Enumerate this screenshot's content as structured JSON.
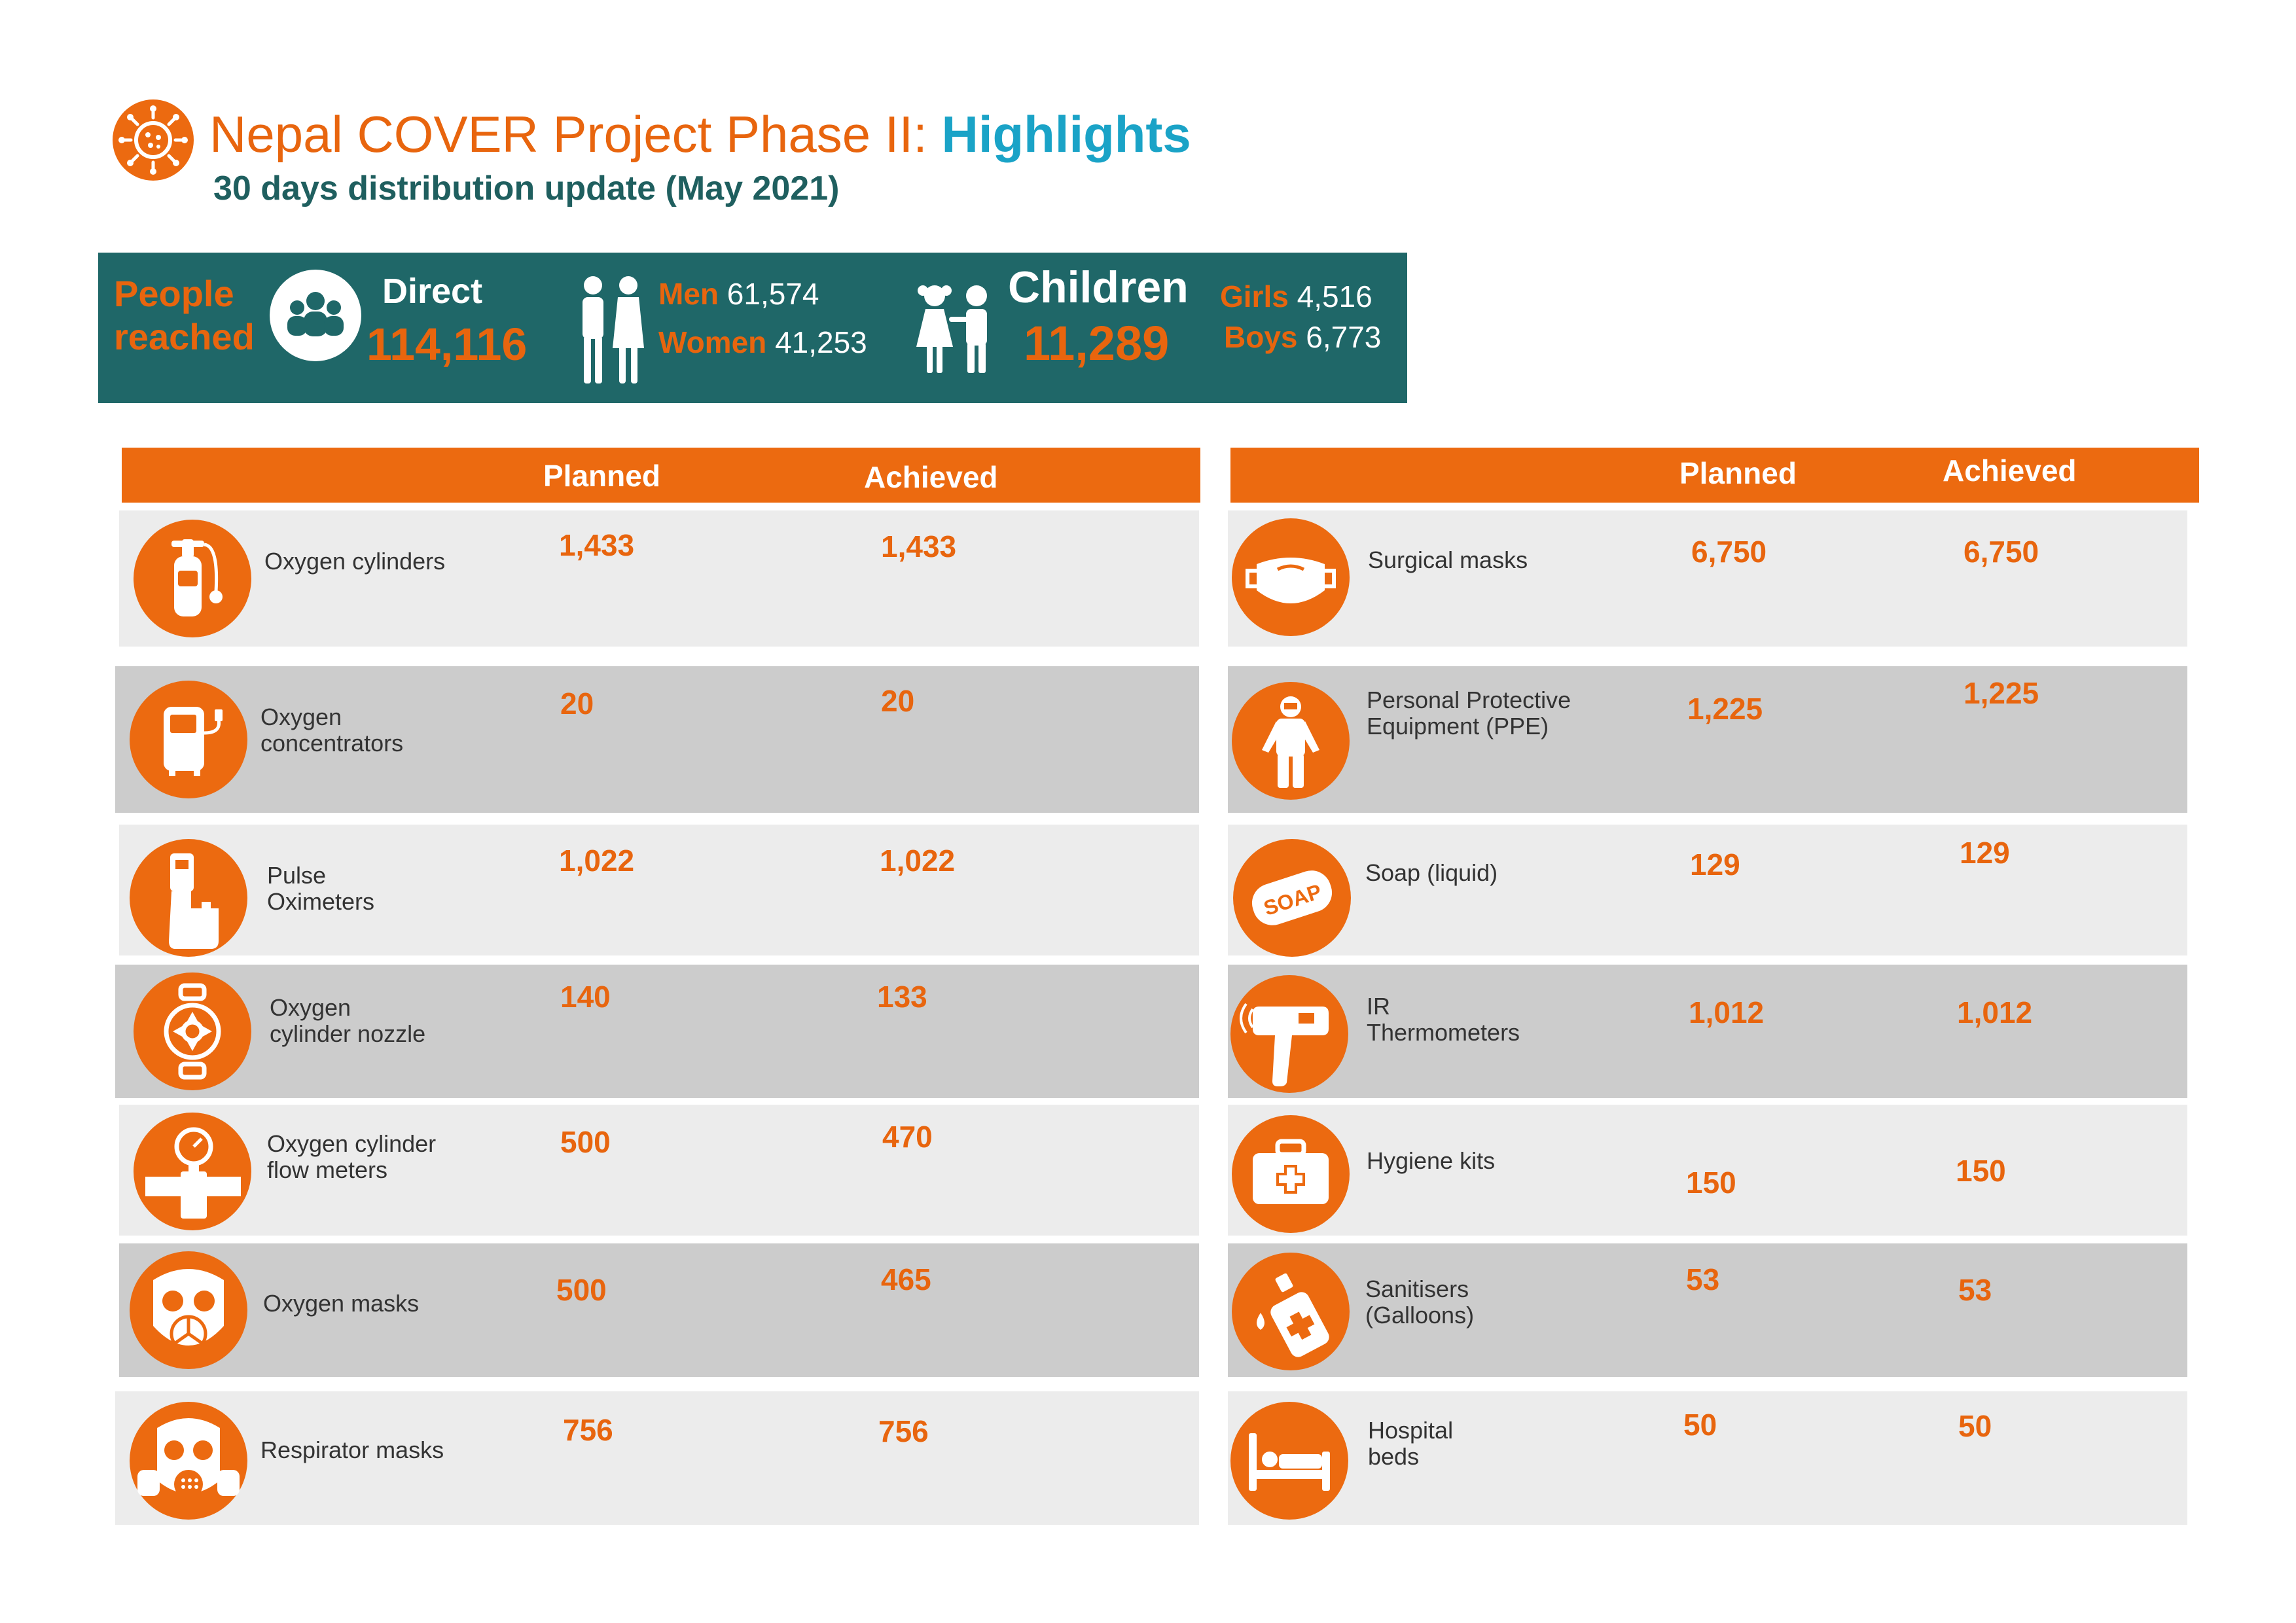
{
  "header": {
    "title_main": "Nepal COVER Project Phase II: ",
    "title_highlight": "Highlights",
    "subtitle": "30 days distribution update (May 2021)",
    "logo_icon": "virus-icon"
  },
  "summary": {
    "people_line1": "People",
    "people_line2": "reached",
    "direct_label": "Direct",
    "direct_value": "114,116",
    "men_label": "Men",
    "men_value": "61,574",
    "women_label": "Women",
    "women_value": "41,253",
    "children_label": "Children",
    "children_value": "11,289",
    "girls_label": "Girls",
    "girls_value": "4,516",
    "boys_label": "Boys",
    "boys_value": "6,773",
    "colors": {
      "bar": "#1f6768",
      "accent": "#e8650e"
    }
  },
  "table_headers": {
    "planned": "Planned",
    "achieved": "Achieved"
  },
  "left_items": [
    {
      "name_l1": "Oxygen cylinders",
      "name_l2": "",
      "planned": "1,433",
      "achieved": "1,433",
      "icon": "oxygen-cylinder-icon"
    },
    {
      "name_l1": "Oxygen",
      "name_l2": "concentrators",
      "planned": "20",
      "achieved": "20",
      "icon": "oxygen-concentrator-icon"
    },
    {
      "name_l1": "Pulse",
      "name_l2": "Oximeters",
      "planned": "1,022",
      "achieved": "1,022",
      "icon": "pulse-oximeter-icon"
    },
    {
      "name_l1": "Oxygen",
      "name_l2": "cylinder nozzle",
      "planned": "140",
      "achieved": "133",
      "icon": "cylinder-nozzle-icon"
    },
    {
      "name_l1": "Oxygen cylinder",
      "name_l2": "flow meters",
      "planned": "500",
      "achieved": "470",
      "icon": "flow-meter-icon"
    },
    {
      "name_l1": "Oxygen masks",
      "name_l2": "",
      "planned": "500",
      "achieved": "465",
      "icon": "oxygen-mask-icon"
    },
    {
      "name_l1": "Respirator masks",
      "name_l2": "",
      "planned": "756",
      "achieved": "756",
      "icon": "respirator-mask-icon"
    }
  ],
  "right_items": [
    {
      "name_l1": "Surgical masks",
      "name_l2": "",
      "planned": "6,750",
      "achieved": "6,750",
      "icon": "surgical-mask-icon"
    },
    {
      "name_l1": "Personal Protective",
      "name_l2": "Equipment (PPE)",
      "planned": "1,225",
      "achieved": "1,225",
      "icon": "ppe-suit-icon"
    },
    {
      "name_l1": "Soap (liquid)",
      "name_l2": "",
      "planned": "129",
      "achieved": "129",
      "icon": "soap-icon",
      "icon_text": "SOAP"
    },
    {
      "name_l1": "IR",
      "name_l2": "Thermometers",
      "planned": "1,012",
      "achieved": "1,012",
      "icon": "ir-thermometer-icon"
    },
    {
      "name_l1": "Hygiene kits",
      "name_l2": "",
      "planned": "150",
      "achieved": "150",
      "icon": "first-aid-kit-icon"
    },
    {
      "name_l1": "Sanitisers",
      "name_l2": "(Galloons)",
      "planned": "53",
      "achieved": "53",
      "icon": "sanitiser-bottle-icon"
    },
    {
      "name_l1": "Hospital",
      "name_l2": "beds",
      "planned": "50",
      "achieved": "50",
      "icon": "hospital-bed-icon"
    }
  ]
}
